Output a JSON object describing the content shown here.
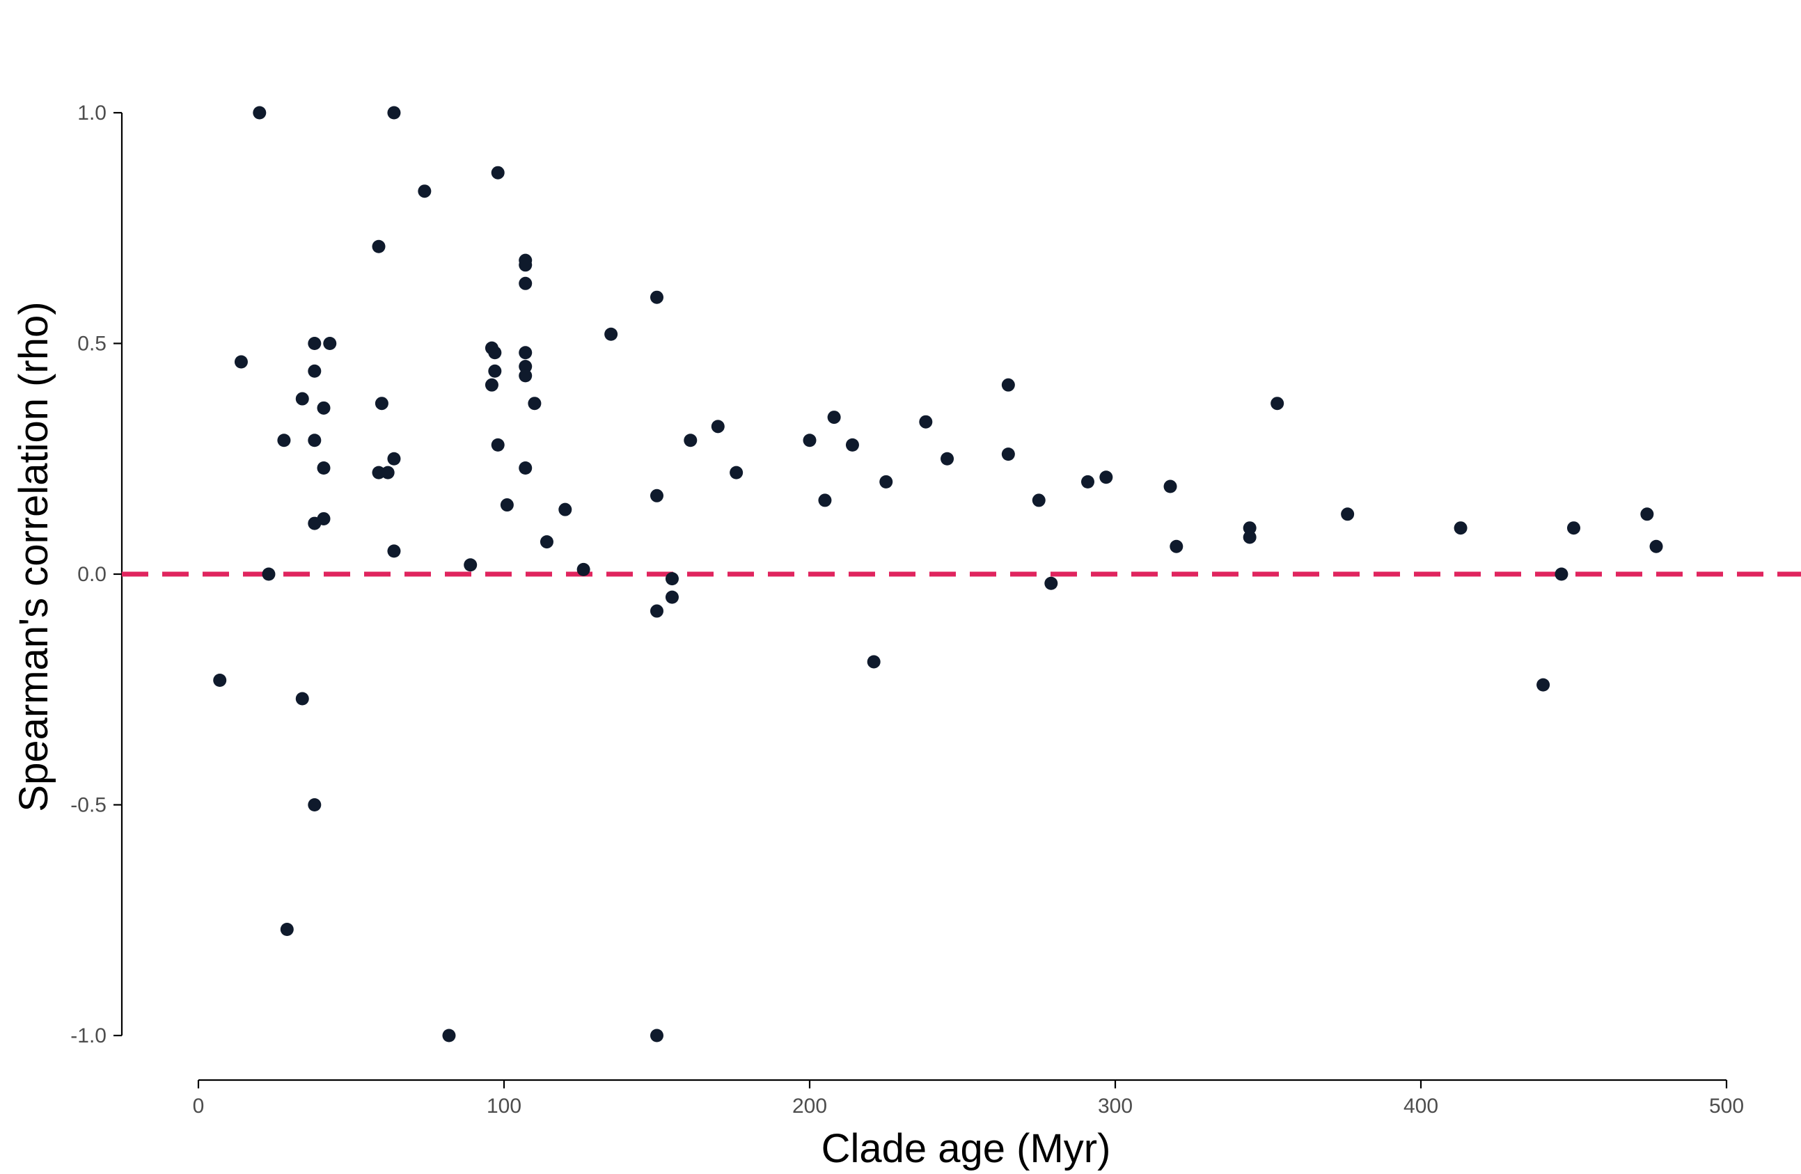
{
  "chart_data": {
    "type": "scatter",
    "xlabel": "Clade age (Myr)",
    "ylabel": "Spearman's correlation (rho)",
    "xlim": [
      -25,
      525
    ],
    "ylim": [
      -1.1,
      1.1
    ],
    "xticks": [
      0,
      100,
      200,
      300,
      400,
      500
    ],
    "yticks": [
      -1.0,
      -0.5,
      0.0,
      0.5,
      1.0
    ],
    "xtick_labels": [
      "0",
      "100",
      "200",
      "300",
      "400",
      "500"
    ],
    "ytick_labels": [
      "-1.0",
      "-0.5",
      "0.0",
      "0.5",
      "1.0"
    ],
    "grid": false,
    "reference_line": {
      "y": 0,
      "style": "dashed",
      "color": "#E0245E"
    },
    "point_color": "#0F1A2C",
    "points": [
      {
        "x": 7,
        "y": -0.23
      },
      {
        "x": 14,
        "y": 0.46
      },
      {
        "x": 20,
        "y": 1.0
      },
      {
        "x": 23,
        "y": 0.0
      },
      {
        "x": 28,
        "y": 0.29
      },
      {
        "x": 29,
        "y": -0.77
      },
      {
        "x": 34,
        "y": 0.38
      },
      {
        "x": 34,
        "y": -0.27
      },
      {
        "x": 38,
        "y": 0.5
      },
      {
        "x": 38,
        "y": 0.44
      },
      {
        "x": 38,
        "y": 0.29
      },
      {
        "x": 38,
        "y": 0.11
      },
      {
        "x": 38,
        "y": -0.5
      },
      {
        "x": 41,
        "y": 0.36
      },
      {
        "x": 41,
        "y": 0.23
      },
      {
        "x": 41,
        "y": 0.12
      },
      {
        "x": 43,
        "y": 0.5
      },
      {
        "x": 59,
        "y": 0.71
      },
      {
        "x": 59,
        "y": 0.22
      },
      {
        "x": 60,
        "y": 0.37
      },
      {
        "x": 62,
        "y": 0.22
      },
      {
        "x": 64,
        "y": 1.0
      },
      {
        "x": 64,
        "y": 0.25
      },
      {
        "x": 64,
        "y": 0.05
      },
      {
        "x": 74,
        "y": 0.83
      },
      {
        "x": 82,
        "y": -1.0
      },
      {
        "x": 89,
        "y": 0.02
      },
      {
        "x": 96,
        "y": 0.49
      },
      {
        "x": 96,
        "y": 0.41
      },
      {
        "x": 97,
        "y": 0.48
      },
      {
        "x": 97,
        "y": 0.44
      },
      {
        "x": 98,
        "y": 0.87
      },
      {
        "x": 98,
        "y": 0.28
      },
      {
        "x": 101,
        "y": 0.15
      },
      {
        "x": 107,
        "y": 0.68
      },
      {
        "x": 107,
        "y": 0.67
      },
      {
        "x": 107,
        "y": 0.63
      },
      {
        "x": 107,
        "y": 0.48
      },
      {
        "x": 107,
        "y": 0.45
      },
      {
        "x": 107,
        "y": 0.43
      },
      {
        "x": 107,
        "y": 0.23
      },
      {
        "x": 110,
        "y": 0.37
      },
      {
        "x": 114,
        "y": 0.07
      },
      {
        "x": 120,
        "y": 0.14
      },
      {
        "x": 126,
        "y": 0.01
      },
      {
        "x": 135,
        "y": 0.52
      },
      {
        "x": 150,
        "y": 0.6
      },
      {
        "x": 150,
        "y": 0.17
      },
      {
        "x": 150,
        "y": -0.08
      },
      {
        "x": 150,
        "y": -1.0
      },
      {
        "x": 155,
        "y": -0.01
      },
      {
        "x": 155,
        "y": -0.05
      },
      {
        "x": 161,
        "y": 0.29
      },
      {
        "x": 170,
        "y": 0.32
      },
      {
        "x": 176,
        "y": 0.22
      },
      {
        "x": 200,
        "y": 0.29
      },
      {
        "x": 205,
        "y": 0.16
      },
      {
        "x": 208,
        "y": 0.34
      },
      {
        "x": 214,
        "y": 0.28
      },
      {
        "x": 221,
        "y": -0.19
      },
      {
        "x": 225,
        "y": 0.2
      },
      {
        "x": 238,
        "y": 0.33
      },
      {
        "x": 245,
        "y": 0.25
      },
      {
        "x": 265,
        "y": 0.41
      },
      {
        "x": 265,
        "y": 0.26
      },
      {
        "x": 275,
        "y": 0.16
      },
      {
        "x": 279,
        "y": -0.02
      },
      {
        "x": 291,
        "y": 0.2
      },
      {
        "x": 297,
        "y": 0.21
      },
      {
        "x": 318,
        "y": 0.19
      },
      {
        "x": 320,
        "y": 0.06
      },
      {
        "x": 344,
        "y": 0.1
      },
      {
        "x": 344,
        "y": 0.08
      },
      {
        "x": 353,
        "y": 0.37
      },
      {
        "x": 376,
        "y": 0.13
      },
      {
        "x": 413,
        "y": 0.1
      },
      {
        "x": 440,
        "y": -0.24
      },
      {
        "x": 446,
        "y": 0.0
      },
      {
        "x": 450,
        "y": 0.1
      },
      {
        "x": 474,
        "y": 0.13
      },
      {
        "x": 477,
        "y": 0.06
      }
    ]
  }
}
